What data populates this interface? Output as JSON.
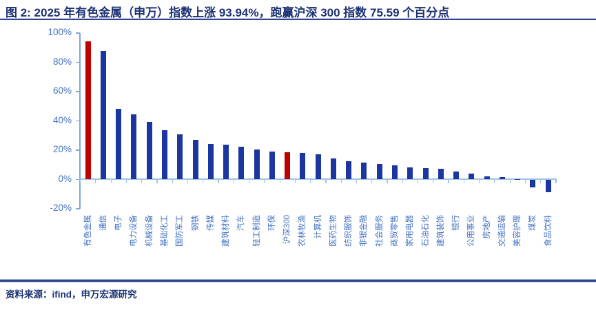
{
  "header": {
    "title": "图 2: 2025 年有色金属（申万）指数上涨 93.94%，跑赢沪深 300 指数 75.59 个百分点"
  },
  "source": {
    "text": "资料来源：ifind，申万宏源研究"
  },
  "colors": {
    "title_text": "#1B3173",
    "axis_text": "#4472C4",
    "bar": "#1B369F",
    "bar_highlight": "#C00000",
    "axis_line": "#7EA6DC",
    "axis_line_light": "#9DC3E6",
    "rule": "#2F4391"
  },
  "chart_data": {
    "type": "bar",
    "title": "图 2: 2025 年有色金属（申万）指数上涨 93.94%，跑赢沪深 300 指数 75.59 个百分点",
    "xlabel": "",
    "ylabel": "",
    "unit": "%",
    "ylim": [
      -20,
      100
    ],
    "grid": false,
    "legend": false,
    "categories": [
      "有色金属",
      "通信",
      "电子",
      "电力设备",
      "机械设备",
      "基础化工",
      "国防军工",
      "钢铁",
      "传媒",
      "建筑材料",
      "汽车",
      "轻工制造",
      "环保",
      "沪深300",
      "农林牧渔",
      "计算机",
      "医药生物",
      "纺织服饰",
      "非银金融",
      "社会服务",
      "商贸零售",
      "家用电器",
      "石油石化",
      "建筑装饰",
      "银行",
      "公用事业",
      "房地产",
      "交通运输",
      "美容护理",
      "煤炭",
      "食品饮料"
    ],
    "values": [
      93.94,
      87.5,
      47.9,
      44.3,
      39.2,
      33.5,
      30.6,
      26.9,
      24.1,
      23.4,
      22.1,
      20.4,
      18.8,
      18.35,
      18.0,
      16.9,
      14.0,
      12.4,
      11.4,
      10.2,
      9.4,
      7.9,
      7.3,
      6.9,
      5.4,
      3.9,
      2.1,
      1.6,
      0.1,
      -5.3,
      -8.4
    ],
    "highlight_categories": [
      "有色金属",
      "沪深300"
    ],
    "y_ticks": [
      {
        "label": "100%",
        "value": 100
      },
      {
        "label": "80%",
        "value": 80
      },
      {
        "label": "60%",
        "value": 60
      },
      {
        "label": "40%",
        "value": 40
      },
      {
        "label": "20%",
        "value": 20
      },
      {
        "label": "0%",
        "value": 0
      },
      {
        "label": "-20%",
        "value": -20
      }
    ]
  }
}
